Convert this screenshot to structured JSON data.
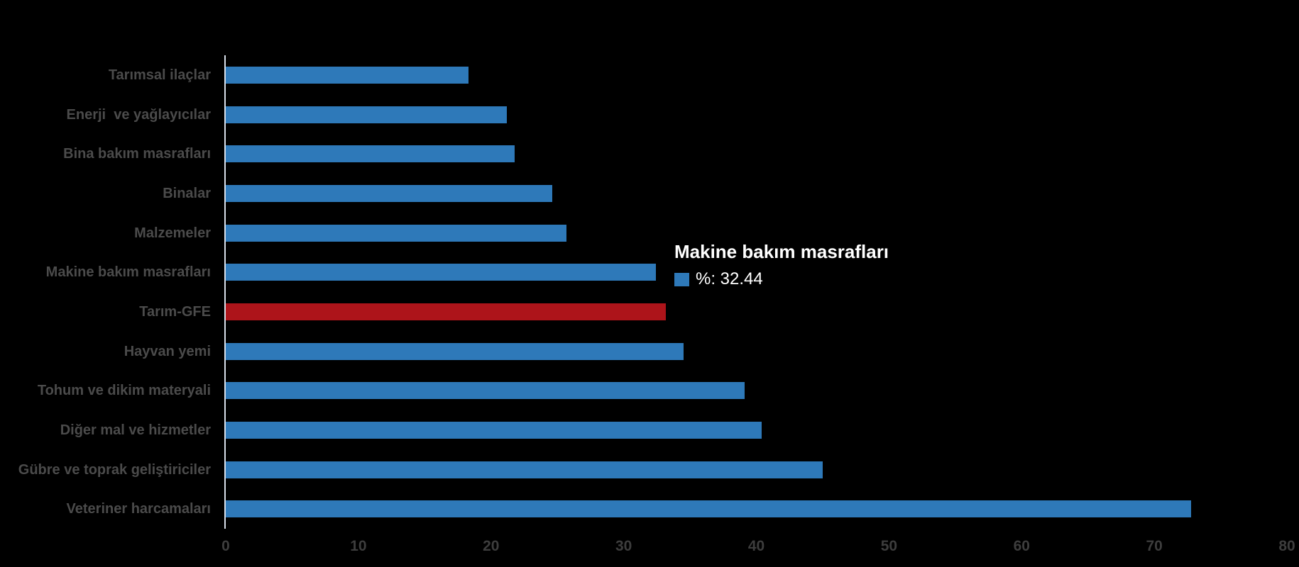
{
  "page": {
    "background_color": "#000000"
  },
  "chart_data": {
    "type": "bar",
    "orientation": "horizontal",
    "title": "",
    "xlabel": "",
    "ylabel": "",
    "xlim": [
      0,
      80
    ],
    "xticks": [
      0,
      10,
      20,
      30,
      40,
      50,
      60,
      70,
      80
    ],
    "grid": false,
    "legend": false,
    "bar_color": "#2E79B9",
    "highlight_color": "#AD141A",
    "axis_line_color": "#D9E1EB",
    "category_label_color": "#4B4B4B",
    "tick_label_color": "#3D3D3D",
    "series": [
      {
        "label": "Tarımsal ilaçlar",
        "value": 18.3,
        "highlight": false
      },
      {
        "label": "Enerji  ve yağlayıcılar",
        "value": 21.2,
        "highlight": false
      },
      {
        "label": "Bina bakım masrafları",
        "value": 21.8,
        "highlight": false
      },
      {
        "label": "Binalar",
        "value": 24.6,
        "highlight": false
      },
      {
        "label": "Malzemeler",
        "value": 25.7,
        "highlight": false
      },
      {
        "label": "Makine bakım masrafları",
        "value": 32.44,
        "highlight": false
      },
      {
        "label": "Tarım-GFE",
        "value": 33.2,
        "highlight": true
      },
      {
        "label": "Hayvan yemi",
        "value": 34.5,
        "highlight": false
      },
      {
        "label": "Tohum ve dikim materyali",
        "value": 39.1,
        "highlight": false
      },
      {
        "label": "Diğer mal ve hizmetler",
        "value": 40.4,
        "highlight": false
      },
      {
        "label": "Gübre ve toprak geliştiriciler",
        "value": 45.0,
        "highlight": false
      },
      {
        "label": "Veteriner harcamaları",
        "value": 72.8,
        "highlight": false
      }
    ],
    "tooltip": {
      "title": "Makine bakım masrafları",
      "swatch_color": "#2E79B9",
      "value_label": "%: 32.44"
    }
  }
}
